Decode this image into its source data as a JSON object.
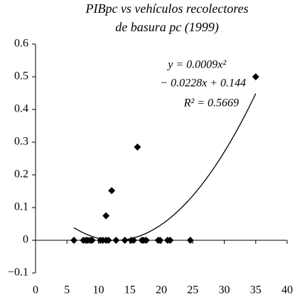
{
  "chart_data": {
    "type": "scatter",
    "title": [
      "PIBpc vs vehículos recolectores",
      "de basura pc (1999)"
    ],
    "x": [
      6.1,
      7.6,
      8.0,
      8.3,
      8.7,
      9.0,
      10.3,
      10.7,
      11.2,
      11.6,
      12.8,
      14.2,
      15.2,
      15.6,
      16.9,
      17.2,
      17.6,
      19.5,
      19.8,
      21.0,
      21.4,
      24.6,
      11.2,
      12.1,
      16.2,
      35
    ],
    "values": [
      0,
      0,
      0,
      0,
      0,
      0,
      0,
      0,
      0,
      0,
      0,
      0,
      0,
      0,
      0,
      0,
      0,
      0,
      0,
      0,
      0,
      0,
      0.075,
      0.152,
      0.285,
      0.5
    ],
    "color": "#000000",
    "xlim": [
      0,
      40
    ],
    "xticks": [
      0,
      5,
      10,
      15,
      20,
      25,
      30,
      35,
      40
    ],
    "ylim": [
      -0.1,
      0.6
    ],
    "yticks": [
      0.6,
      0.5,
      0.4,
      0.3,
      0.2,
      0.1,
      0,
      {
        "value": -0.1,
        "label": "−0.1"
      }
    ],
    "trendline": {
      "coefficients": [
        0.0009,
        -0.0228,
        0.144
      ],
      "color": "#000000"
    },
    "annotations": [
      "y = 0.0009x²",
      "− 0.0228x + 0.144",
      "R² = 0.5669"
    ]
  }
}
